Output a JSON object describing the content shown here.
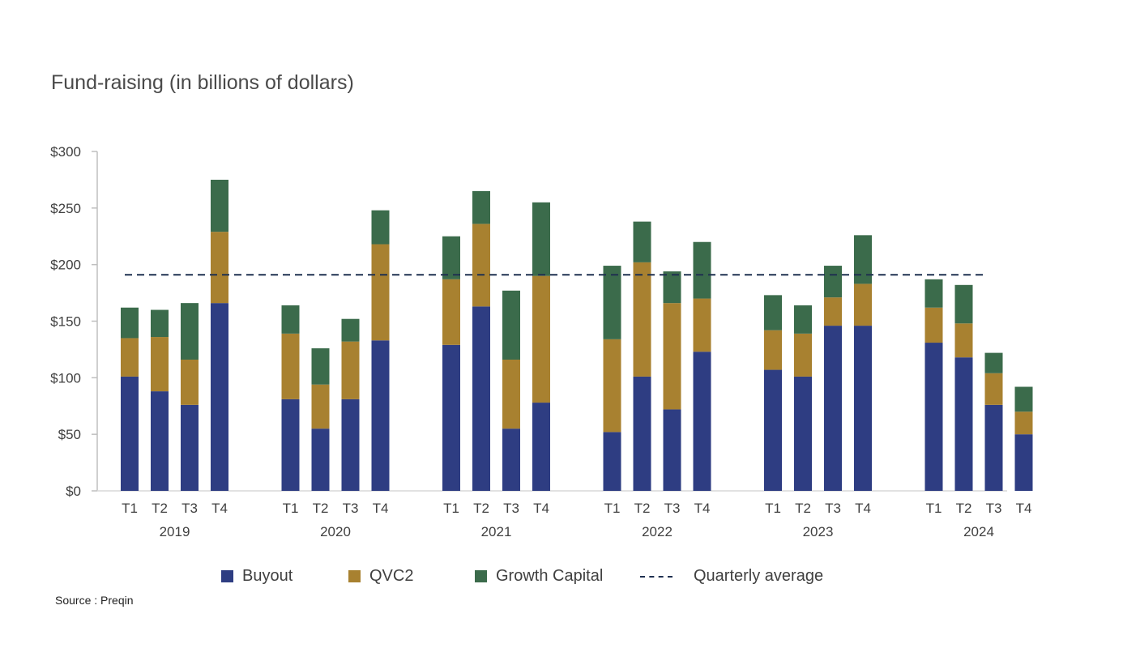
{
  "chart_data": {
    "type": "bar",
    "stacked": true,
    "title": "Fund-raising (in billions of dollars)",
    "xlabel": "",
    "ylabel": "",
    "ylim": [
      0,
      300
    ],
    "yticks": [
      0,
      50,
      100,
      150,
      200,
      250,
      300
    ],
    "ytick_labels": [
      "$0",
      "$50",
      "$100",
      "$150",
      "$200",
      "$250",
      "$300"
    ],
    "groups": [
      {
        "label": "2019",
        "categories": [
          "T1",
          "T2",
          "T3",
          "T4"
        ]
      },
      {
        "label": "2020",
        "categories": [
          "T1",
          "T2",
          "T3",
          "T4"
        ]
      },
      {
        "label": "2021",
        "categories": [
          "T1",
          "T2",
          "T3",
          "T4"
        ]
      },
      {
        "label": "2022",
        "categories": [
          "T1",
          "T2",
          "T3",
          "T4"
        ]
      },
      {
        "label": "2023",
        "categories": [
          "T1",
          "T2",
          "T3",
          "T4"
        ]
      },
      {
        "label": "2024",
        "categories": [
          "T1",
          "T2",
          "T3",
          "T4"
        ]
      }
    ],
    "series": [
      {
        "name": "Buyout",
        "color": "#2e3d82",
        "values": [
          101,
          88,
          76,
          166,
          81,
          55,
          81,
          133,
          129,
          163,
          55,
          78,
          52,
          101,
          72,
          123,
          107,
          101,
          146,
          146,
          131,
          118,
          76,
          50
        ]
      },
      {
        "name": "QVC2",
        "color": "#a88130",
        "values": [
          34,
          48,
          40,
          63,
          58,
          39,
          51,
          85,
          58,
          73,
          61,
          112,
          82,
          101,
          94,
          47,
          35,
          38,
          25,
          37,
          31,
          30,
          28,
          20
        ]
      },
      {
        "name": "Growth Capital",
        "color": "#3b6b4b",
        "values": [
          27,
          24,
          50,
          46,
          25,
          32,
          20,
          30,
          38,
          29,
          61,
          65,
          65,
          36,
          28,
          50,
          31,
          25,
          28,
          43,
          25,
          34,
          18,
          22
        ]
      }
    ],
    "reference_line": {
      "name": "Quarterly average",
      "value": 191,
      "color": "#1f3050",
      "style": "dashed"
    },
    "legend": [
      {
        "label": "Buyout",
        "kind": "box",
        "color": "#2e3d82"
      },
      {
        "label": "QVC2",
        "kind": "box",
        "color": "#a88130"
      },
      {
        "label": "Growth Capital",
        "kind": "box",
        "color": "#3b6b4b"
      },
      {
        "label": "Quarterly average",
        "kind": "dashed-line",
        "color": "#1f3050"
      }
    ],
    "legend_position": "bottom",
    "grid": false
  },
  "source": "Source : Preqin"
}
